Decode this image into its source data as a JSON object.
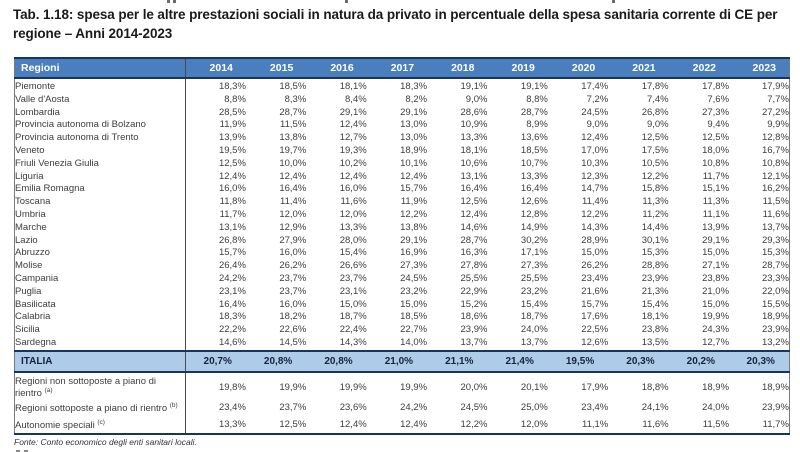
{
  "title": "Tab. 1.18: spesa per le altre prestazioni sociali in natura da privato in percentuale della spesa sanitaria corrente di CE per regione – Anni 2014-2023",
  "footer": "Fonte: Conto economico degli enti sanitari locali.",
  "colors": {
    "header_bg": "#4a7ebc",
    "header_text": "#ffffff",
    "italia_bg": "#aecbe8",
    "border_navy": "#17365d"
  },
  "table": {
    "region_label": "Regioni",
    "years": [
      "2014",
      "2015",
      "2016",
      "2017",
      "2018",
      "2019",
      "2020",
      "2021",
      "2022",
      "2023"
    ],
    "regions": [
      {
        "name": "Piemonte",
        "values": [
          "18,3%",
          "18,5%",
          "18,1%",
          "18,3%",
          "19,1%",
          "19,1%",
          "17,4%",
          "17,8%",
          "17,8%",
          "17,9%"
        ]
      },
      {
        "name": "Valle d'Aosta",
        "values": [
          "8,8%",
          "8,3%",
          "8,4%",
          "8,2%",
          "9,0%",
          "8,8%",
          "7,2%",
          "7,4%",
          "7,6%",
          "7,7%"
        ]
      },
      {
        "name": "Lombardia",
        "values": [
          "28,5%",
          "28,7%",
          "29,1%",
          "29,1%",
          "28,6%",
          "28,7%",
          "24,5%",
          "26,8%",
          "27,3%",
          "27,2%"
        ]
      },
      {
        "name": "Provincia autonoma di Bolzano",
        "values": [
          "11,9%",
          "11,5%",
          "12,4%",
          "13,0%",
          "10,9%",
          "8,9%",
          "9,0%",
          "9,0%",
          "9,4%",
          "9,9%"
        ]
      },
      {
        "name": "Provincia autonoma di Trento",
        "values": [
          "13,9%",
          "13,8%",
          "12,7%",
          "13,0%",
          "13,3%",
          "13,6%",
          "12,4%",
          "12,5%",
          "12,5%",
          "12,8%"
        ]
      },
      {
        "name": "Veneto",
        "values": [
          "19,5%",
          "19,7%",
          "19,3%",
          "18,9%",
          "18,1%",
          "18,5%",
          "17,0%",
          "17,5%",
          "18,0%",
          "16,7%"
        ]
      },
      {
        "name": "Friuli Venezia Giulia",
        "values": [
          "12,5%",
          "10,0%",
          "10,2%",
          "10,1%",
          "10,6%",
          "10,7%",
          "10,3%",
          "10,5%",
          "10,8%",
          "10,8%"
        ]
      },
      {
        "name": "Liguria",
        "values": [
          "12,4%",
          "12,4%",
          "12,4%",
          "12,4%",
          "13,1%",
          "13,3%",
          "12,3%",
          "12,2%",
          "11,7%",
          "12,1%"
        ]
      },
      {
        "name": "Emilia Romagna",
        "values": [
          "16,0%",
          "16,4%",
          "16,0%",
          "15,7%",
          "16,4%",
          "16,4%",
          "14,7%",
          "15,8%",
          "15,1%",
          "16,2%"
        ]
      },
      {
        "name": "Toscana",
        "values": [
          "11,8%",
          "11,4%",
          "11,6%",
          "11,9%",
          "12,5%",
          "12,6%",
          "11,4%",
          "11,3%",
          "11,3%",
          "11,5%"
        ]
      },
      {
        "name": "Umbria",
        "values": [
          "11,7%",
          "12,0%",
          "12,0%",
          "12,2%",
          "12,4%",
          "12,8%",
          "12,2%",
          "11,2%",
          "11,1%",
          "11,6%"
        ]
      },
      {
        "name": "Marche",
        "values": [
          "13,1%",
          "12,9%",
          "13,3%",
          "13,8%",
          "14,6%",
          "14,9%",
          "14,3%",
          "14,4%",
          "13,9%",
          "13,7%"
        ]
      },
      {
        "name": "Lazio",
        "values": [
          "26,8%",
          "27,9%",
          "28,0%",
          "29,1%",
          "28,7%",
          "30,2%",
          "28,9%",
          "30,1%",
          "29,1%",
          "29,3%"
        ]
      },
      {
        "name": "Abruzzo",
        "values": [
          "15,7%",
          "16,0%",
          "15,4%",
          "16,9%",
          "16,3%",
          "17,1%",
          "15,0%",
          "15,3%",
          "15,0%",
          "15,3%"
        ]
      },
      {
        "name": "Molise",
        "values": [
          "26,4%",
          "26,2%",
          "26,6%",
          "27,3%",
          "27,8%",
          "27,3%",
          "26,2%",
          "28,8%",
          "27,1%",
          "28,7%"
        ]
      },
      {
        "name": "Campania",
        "values": [
          "24,2%",
          "23,7%",
          "23,7%",
          "24,5%",
          "25,5%",
          "25,5%",
          "23,4%",
          "23,9%",
          "23,8%",
          "23,3%"
        ]
      },
      {
        "name": "Puglia",
        "values": [
          "23,1%",
          "23,7%",
          "23,1%",
          "23,2%",
          "22,9%",
          "23,2%",
          "21,6%",
          "21,3%",
          "21,0%",
          "22,0%"
        ]
      },
      {
        "name": "Basilicata",
        "values": [
          "16,4%",
          "16,0%",
          "15,0%",
          "15,0%",
          "15,2%",
          "15,4%",
          "15,7%",
          "15,4%",
          "15,0%",
          "15,5%"
        ]
      },
      {
        "name": "Calabria",
        "values": [
          "18,3%",
          "18,2%",
          "18,7%",
          "18,5%",
          "18,6%",
          "18,7%",
          "17,6%",
          "18,1%",
          "19,9%",
          "18,9%"
        ]
      },
      {
        "name": "Sicilia",
        "values": [
          "22,2%",
          "22,6%",
          "22,4%",
          "22,7%",
          "23,9%",
          "24,0%",
          "22,5%",
          "23,8%",
          "24,3%",
          "23,9%"
        ]
      },
      {
        "name": "Sardegna",
        "values": [
          "14,6%",
          "14,5%",
          "14,3%",
          "14,0%",
          "13,7%",
          "13,7%",
          "12,6%",
          "13,5%",
          "12,7%",
          "13,2%"
        ]
      }
    ],
    "italia": {
      "name": "ITALIA",
      "values": [
        "20,7%",
        "20,8%",
        "20,8%",
        "21,0%",
        "21,1%",
        "21,4%",
        "19,5%",
        "20,3%",
        "20,2%",
        "20,3%"
      ]
    },
    "summary": [
      {
        "name": "Regioni non sottoposte a piano di rientro",
        "sup": "(a)",
        "values": [
          "19,8%",
          "19,9%",
          "19,9%",
          "19,9%",
          "20,0%",
          "20,1%",
          "17,9%",
          "18,8%",
          "18,9%",
          "18,9%"
        ]
      },
      {
        "name": "Regioni sottoposte a piano di rientro",
        "sup": "(b)",
        "values": [
          "23,4%",
          "23,7%",
          "23,6%",
          "24,2%",
          "24,5%",
          "25,0%",
          "23,4%",
          "24,1%",
          "24,0%",
          "23,9%"
        ]
      },
      {
        "name": "Autonomie speciali",
        "sup": "(c)",
        "values": [
          "13,3%",
          "12,5%",
          "12,4%",
          "12,4%",
          "12,2%",
          "12,0%",
          "11,1%",
          "11,6%",
          "11,5%",
          "11,7%"
        ]
      }
    ]
  }
}
